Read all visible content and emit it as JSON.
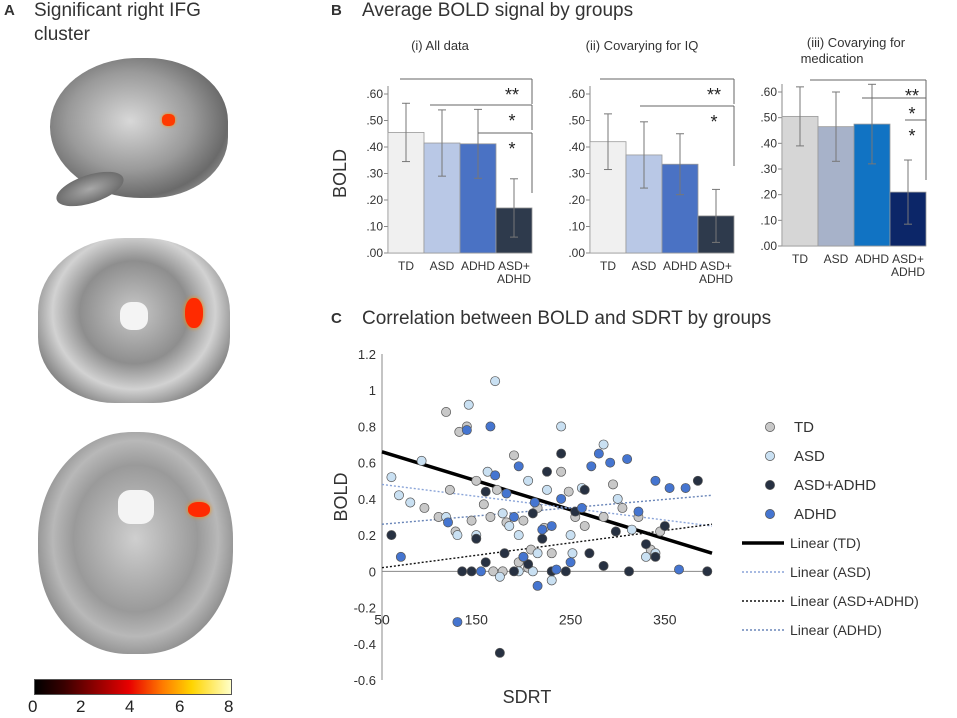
{
  "panel_a": {
    "letter": "A",
    "title_line1": "Significant right IFG",
    "title_line2": "cluster",
    "colorbar_ticks": [
      "0",
      "2",
      "4",
      "6",
      "8"
    ]
  },
  "panel_b": {
    "letter": "B",
    "title": "Average BOLD signal by groups"
  },
  "panel_c": {
    "letter": "C",
    "title": "Correlation between BOLD and SDRT by groups"
  },
  "chart_data": [
    {
      "type": "bar",
      "title": "(i) All data",
      "ylabel": "BOLD",
      "categories": [
        "TD",
        "ASD",
        "ADHD",
        "ASD+\nADHD"
      ],
      "values": [
        0.455,
        0.415,
        0.412,
        0.17
      ],
      "error": [
        0.11,
        0.125,
        0.13,
        0.11
      ],
      "colors": [
        "#f0f0f0",
        "#b9c8e6",
        "#4a72c4",
        "#2e3a4c"
      ],
      "ylim": [
        0,
        0.6
      ],
      "yticks": [
        ".00",
        ".10",
        ".20",
        ".30",
        ".40",
        ".50",
        ".60"
      ],
      "significance": [
        "**",
        "*",
        "*"
      ]
    },
    {
      "type": "bar",
      "title": "(ii) Covarying for IQ",
      "categories": [
        "TD",
        "ASD",
        "ADHD",
        "ASD+\nADHD"
      ],
      "values": [
        0.42,
        0.37,
        0.335,
        0.14
      ],
      "error": [
        0.105,
        0.125,
        0.115,
        0.1
      ],
      "colors": [
        "#f0f0f0",
        "#b9c8e6",
        "#4a72c4",
        "#2e3a4c"
      ],
      "ylim": [
        0,
        0.6
      ],
      "yticks": [
        ".00",
        ".10",
        ".20",
        ".30",
        ".40",
        ".50",
        ".60"
      ],
      "significance": [
        "**",
        "*"
      ]
    },
    {
      "type": "bar",
      "title_line1": "(iii) Covarying for",
      "title_line2": "medication",
      "categories": [
        "TD",
        "ASD",
        "ADHD",
        "ASD+\nADHD"
      ],
      "values": [
        0.505,
        0.465,
        0.475,
        0.21
      ],
      "error": [
        0.115,
        0.135,
        0.155,
        0.125
      ],
      "colors": [
        "#d6d6d6",
        "#a7b2c9",
        "#1173c3",
        "#0c2668"
      ],
      "ylim": [
        0,
        0.6
      ],
      "yticks": [
        ".00",
        ".10",
        ".20",
        ".30",
        ".40",
        ".50",
        ".60"
      ],
      "significance": [
        "**",
        "*",
        "*"
      ]
    },
    {
      "type": "scatter",
      "title": "Correlation between BOLD and SDRT by groups",
      "xlabel": "SDRT",
      "ylabel": "BOLD",
      "xlim": [
        50,
        400
      ],
      "ylim": [
        -0.6,
        1.2
      ],
      "xticks": [
        "50",
        "150",
        "250",
        "350"
      ],
      "yticks": [
        "-0.6",
        "-0.4",
        "-0.2",
        "0",
        "0.2",
        "0.4",
        "0.6",
        "0.8",
        "1",
        "1.2"
      ],
      "legend": [
        "TD",
        "ASD",
        "ASD+ADHD",
        "ADHD",
        "Linear (TD)",
        "Linear (ASD)",
        "Linear (ASD+ADHD)",
        "Linear (ADHD)"
      ],
      "series": [
        {
          "name": "TD",
          "color": "#c8c8c8",
          "points": [
            [
              118,
              0.88
            ],
            [
              122,
              0.45
            ],
            [
              132,
              0.77
            ],
            [
              140,
              0.8
            ],
            [
              150,
              0.5
            ],
            [
              158,
              0.37
            ],
            [
              165,
              0.3
            ],
            [
              172,
              0.45
            ],
            [
              182,
              0.27
            ],
            [
              190,
              0.64
            ],
            [
              200,
              0.28
            ],
            [
              208,
              0.12
            ],
            [
              215,
              0.35
            ],
            [
              222,
              0.24
            ],
            [
              230,
              0.1
            ],
            [
              240,
              0.55
            ],
            [
              248,
              0.44
            ],
            [
              255,
              0.3
            ],
            [
              265,
              0.25
            ],
            [
              285,
              0.3
            ],
            [
              295,
              0.48
            ],
            [
              305,
              0.35
            ],
            [
              322,
              0.3
            ],
            [
              335,
              0.12
            ],
            [
              345,
              0.22
            ],
            [
              128,
              0.22
            ],
            [
              145,
              0.28
            ],
            [
              168,
              0.0
            ],
            [
              178,
              0.0
            ],
            [
              195,
              0.05
            ],
            [
              205,
              0.02
            ],
            [
              95,
              0.35
            ],
            [
              110,
              0.3
            ]
          ]
        },
        {
          "name": "ASD",
          "color": "#c9e0f2",
          "points": [
            [
              60,
              0.52
            ],
            [
              68,
              0.42
            ],
            [
              80,
              0.38
            ],
            [
              92,
              0.61
            ],
            [
              118,
              0.3
            ],
            [
              130,
              0.2
            ],
            [
              142,
              0.92
            ],
            [
              150,
              0.2
            ],
            [
              162,
              0.55
            ],
            [
              170,
              1.05
            ],
            [
              178,
              0.32
            ],
            [
              185,
              0.25
            ],
            [
              195,
              0.2
            ],
            [
              205,
              0.5
            ],
            [
              215,
              0.1
            ],
            [
              225,
              0.45
            ],
            [
              240,
              0.8
            ],
            [
              252,
              0.1
            ],
            [
              262,
              0.46
            ],
            [
              285,
              0.7
            ],
            [
              300,
              0.4
            ],
            [
              315,
              0.23
            ],
            [
              330,
              0.08
            ],
            [
              340,
              0.1
            ],
            [
              175,
              -0.03
            ],
            [
              210,
              0.0
            ],
            [
              230,
              -0.05
            ],
            [
              250,
              0.2
            ],
            [
              195,
              0.0
            ]
          ]
        },
        {
          "name": "ASD+ADHD",
          "color": "#273142",
          "points": [
            [
              60,
              0.2
            ],
            [
              135,
              0.0
            ],
            [
              145,
              0.0
            ],
            [
              160,
              0.05
            ],
            [
              175,
              -0.45
            ],
            [
              190,
              0.0
            ],
            [
              200,
              0.08
            ],
            [
              210,
              0.32
            ],
            [
              220,
              0.18
            ],
            [
              230,
              0.0
            ],
            [
              240,
              0.65
            ],
            [
              255,
              0.33
            ],
            [
              265,
              0.45
            ],
            [
              285,
              0.03
            ],
            [
              298,
              0.22
            ],
            [
              312,
              0.0
            ],
            [
              330,
              0.15
            ],
            [
              340,
              0.08
            ],
            [
              350,
              0.25
            ],
            [
              385,
              0.5
            ],
            [
              395,
              0.0
            ],
            [
              150,
              0.18
            ],
            [
              180,
              0.1
            ],
            [
              205,
              0.04
            ],
            [
              245,
              0.0
            ],
            [
              270,
              0.1
            ],
            [
              225,
              0.55
            ],
            [
              160,
              0.44
            ]
          ]
        },
        {
          "name": "ADHD",
          "color": "#4575d0",
          "points": [
            [
              70,
              0.08
            ],
            [
              120,
              0.27
            ],
            [
              140,
              0.78
            ],
            [
              155,
              0.0
            ],
            [
              165,
              0.8
            ],
            [
              170,
              0.53
            ],
            [
              182,
              0.43
            ],
            [
              190,
              0.3
            ],
            [
              200,
              0.08
            ],
            [
              212,
              0.38
            ],
            [
              220,
              0.23
            ],
            [
              230,
              0.25
            ],
            [
              240,
              0.4
            ],
            [
              250,
              0.05
            ],
            [
              262,
              0.35
            ],
            [
              272,
              0.58
            ],
            [
              280,
              0.65
            ],
            [
              292,
              0.6
            ],
            [
              310,
              0.62
            ],
            [
              322,
              0.33
            ],
            [
              340,
              0.5
            ],
            [
              355,
              0.46
            ],
            [
              372,
              0.46
            ],
            [
              365,
              0.01
            ],
            [
              130,
              -0.28
            ],
            [
              215,
              -0.08
            ],
            [
              235,
              0.01
            ],
            [
              195,
              0.58
            ]
          ]
        }
      ],
      "trendlines": [
        {
          "name": "Linear (TD)",
          "x": [
            50,
            400
          ],
          "y": [
            0.66,
            0.1
          ],
          "color": "#000000",
          "style": "solid"
        },
        {
          "name": "Linear (ASD)",
          "x": [
            50,
            400
          ],
          "y": [
            0.48,
            0.25
          ],
          "color": "#8aa4d8",
          "style": "dotted"
        },
        {
          "name": "Linear (ASD+ADHD)",
          "x": [
            50,
            400
          ],
          "y": [
            0.02,
            0.26
          ],
          "color": "#111111",
          "style": "dotted"
        },
        {
          "name": "Linear (ADHD)",
          "x": [
            50,
            400
          ],
          "y": [
            0.26,
            0.42
          ],
          "color": "#6a86b8",
          "style": "dotted"
        }
      ]
    }
  ]
}
